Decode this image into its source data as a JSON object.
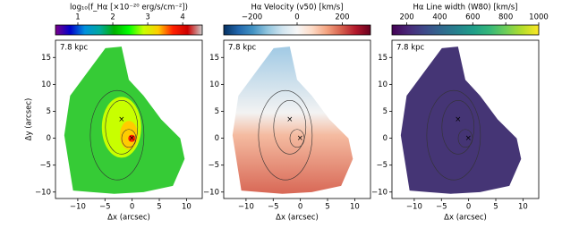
{
  "chart_data": [
    {
      "type": "image",
      "colorbar_label": "log₁₀(f_Hα [×10⁻²⁰ erg/s/cm⁻²])",
      "clim": [
        0.36,
        4.56
      ],
      "cticks": [
        1,
        2,
        3,
        4
      ],
      "colormap": [
        "#7a008a",
        "#0000c8",
        "#0090dd",
        "#00a8a0",
        "#00b000",
        "#00ff00",
        "#c8ff00",
        "#ffcc00",
        "#ff2000",
        "#cc0000",
        "#cccccc"
      ],
      "annotation": "7.8 kpc",
      "xlabel": "Δx (arcsec)",
      "ylabel": "Δy (arcsec)",
      "xlim": [
        -14.1,
        12.9
      ],
      "ylim": [
        -11.2,
        18.2
      ],
      "xticks": [
        {
          "value": -10,
          "label": "−10"
        },
        {
          "value": -5,
          "label": "−5"
        },
        0,
        5,
        10
      ],
      "yticks": [
        {
          "value": -10,
          "label": "−10"
        },
        {
          "value": -5,
          "label": "−5"
        },
        0,
        5,
        10,
        15
      ]
    },
    {
      "type": "image",
      "colorbar_label": "Hα Velocity (v50) [km/s]",
      "clim": [
        -325,
        325
      ],
      "cticks": [
        {
          "value": -200,
          "label": "−200"
        },
        0,
        200
      ],
      "colormap": [
        "#053061",
        "#2166ac",
        "#4393c3",
        "#92c5de",
        "#d1e5f0",
        "#f7f7f7",
        "#fddbc7",
        "#f4a582",
        "#d6604d",
        "#b2182b",
        "#67001f"
      ],
      "annotation": "7.8 kpc",
      "xlabel": "Δx (arcsec)",
      "xlim": [
        -14.1,
        12.9
      ],
      "ylim": [
        -11.2,
        18.2
      ],
      "xticks": [
        {
          "value": -10,
          "label": "−10"
        },
        {
          "value": -5,
          "label": "−5"
        },
        0,
        5,
        10
      ],
      "yticks": [
        {
          "value": -10,
          "label": "−10"
        },
        {
          "value": -5,
          "label": "−5"
        },
        0,
        5,
        10,
        15
      ]
    },
    {
      "type": "image",
      "colorbar_label": "Hα Line width (W80) [km/s]",
      "clim": [
        110,
        1000
      ],
      "cticks": [
        200,
        400,
        600,
        800,
        1000
      ],
      "colormap": [
        "#440154",
        "#482878",
        "#3e4989",
        "#31688e",
        "#26828e",
        "#1f9e89",
        "#35b779",
        "#6ece58",
        "#b5de2b",
        "#fde725"
      ],
      "annotation": "7.8 kpc",
      "xlabel": "Δx (arcsec)",
      "xlim": [
        -14.1,
        12.9
      ],
      "ylim": [
        -11.2,
        18.2
      ],
      "xticks": [
        {
          "value": -10,
          "label": "−10"
        },
        {
          "value": -5,
          "label": "−5"
        },
        0,
        5,
        10
      ],
      "yticks": [
        {
          "value": -10,
          "label": "−10"
        },
        {
          "value": -5,
          "label": "−5"
        },
        0,
        5,
        10,
        15
      ]
    }
  ]
}
